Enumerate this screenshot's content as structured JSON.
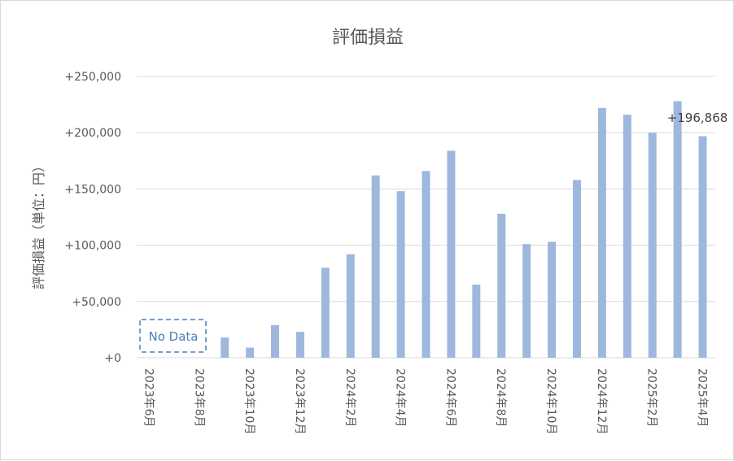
{
  "chart_data": {
    "type": "bar",
    "title": "評価損益",
    "ylabel": "評価損益（単位：円）",
    "xlabel": "",
    "ylim": [
      0,
      250000
    ],
    "y_ticks": [
      0,
      50000,
      100000,
      150000,
      200000,
      250000
    ],
    "y_tick_labels": [
      "+0",
      "+50,000",
      "+100,000",
      "+150,000",
      "+200,000",
      "+250,000"
    ],
    "grid": true,
    "bar_color": "#9db8dc",
    "categories": [
      "2023年6月",
      "2023年7月",
      "2023年8月",
      "2023年9月",
      "2023年10月",
      "2023年11月",
      "2023年12月",
      "2024年1月",
      "2024年2月",
      "2024年3月",
      "2024年4月",
      "2024年5月",
      "2024年6月",
      "2024年7月",
      "2024年8月",
      "2024年9月",
      "2024年10月",
      "2024年11月",
      "2024年12月",
      "2025年1月",
      "2025年2月",
      "2025年3月",
      "2025年4月"
    ],
    "x_tick_labels": [
      "2023年6月",
      "2023年8月",
      "2023年10月",
      "2023年12月",
      "2024年2月",
      "2024年4月",
      "2024年6月",
      "2024年8月",
      "2024年10月",
      "2024年12月",
      "2025年2月",
      "2025年4月"
    ],
    "values": [
      null,
      null,
      null,
      18000,
      9000,
      29000,
      23000,
      80000,
      92000,
      162000,
      148000,
      166000,
      184000,
      65000,
      128000,
      101000,
      103000,
      158000,
      222000,
      216000,
      200000,
      228000,
      196868
    ],
    "annotations": {
      "no_data": "No Data",
      "last_value_label": "+196,868"
    }
  }
}
